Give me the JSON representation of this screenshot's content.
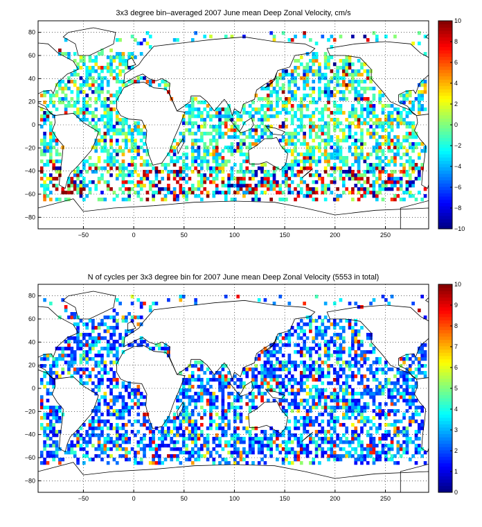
{
  "chart_data": [
    {
      "type": "heatmap",
      "title": "3x3 degree bin–averaged 2007 June mean Deep Zonal Velocity, cm/s",
      "xlabel": "",
      "ylabel": "",
      "xlim": [
        -95,
        293
      ],
      "ylim": [
        -90,
        90
      ],
      "xticks": [
        -50,
        0,
        50,
        100,
        150,
        200,
        250
      ],
      "yticks": [
        -80,
        -60,
        -40,
        -20,
        0,
        20,
        40,
        60,
        80
      ],
      "grid": true,
      "colorbar": {
        "min": -10,
        "max": 10,
        "ticks": [
          -10,
          -8,
          -6,
          -4,
          -2,
          0,
          2,
          4,
          6,
          8,
          10
        ],
        "colormap": "jet"
      },
      "bin_size_deg": 3,
      "data_note_visible": "per-bin values shown as colored cells over ocean areas"
    },
    {
      "type": "heatmap",
      "title": "N of cycles per 3x3 degree bin for 2007 June mean Deep Zonal Velocity (5553 in total)",
      "xlabel": "",
      "ylabel": "",
      "xlim": [
        -95,
        293
      ],
      "ylim": [
        -90,
        90
      ],
      "xticks": [
        -50,
        0,
        50,
        100,
        150,
        200,
        250
      ],
      "yticks": [
        -80,
        -60,
        -40,
        -20,
        0,
        20,
        40,
        60,
        80
      ],
      "grid": true,
      "colorbar": {
        "min": 0,
        "max": 10,
        "ticks": [
          0,
          1,
          2,
          3,
          4,
          5,
          6,
          7,
          8,
          9,
          10
        ],
        "colormap": "jet"
      },
      "bin_size_deg": 3,
      "total_cycles": 5553
    }
  ]
}
